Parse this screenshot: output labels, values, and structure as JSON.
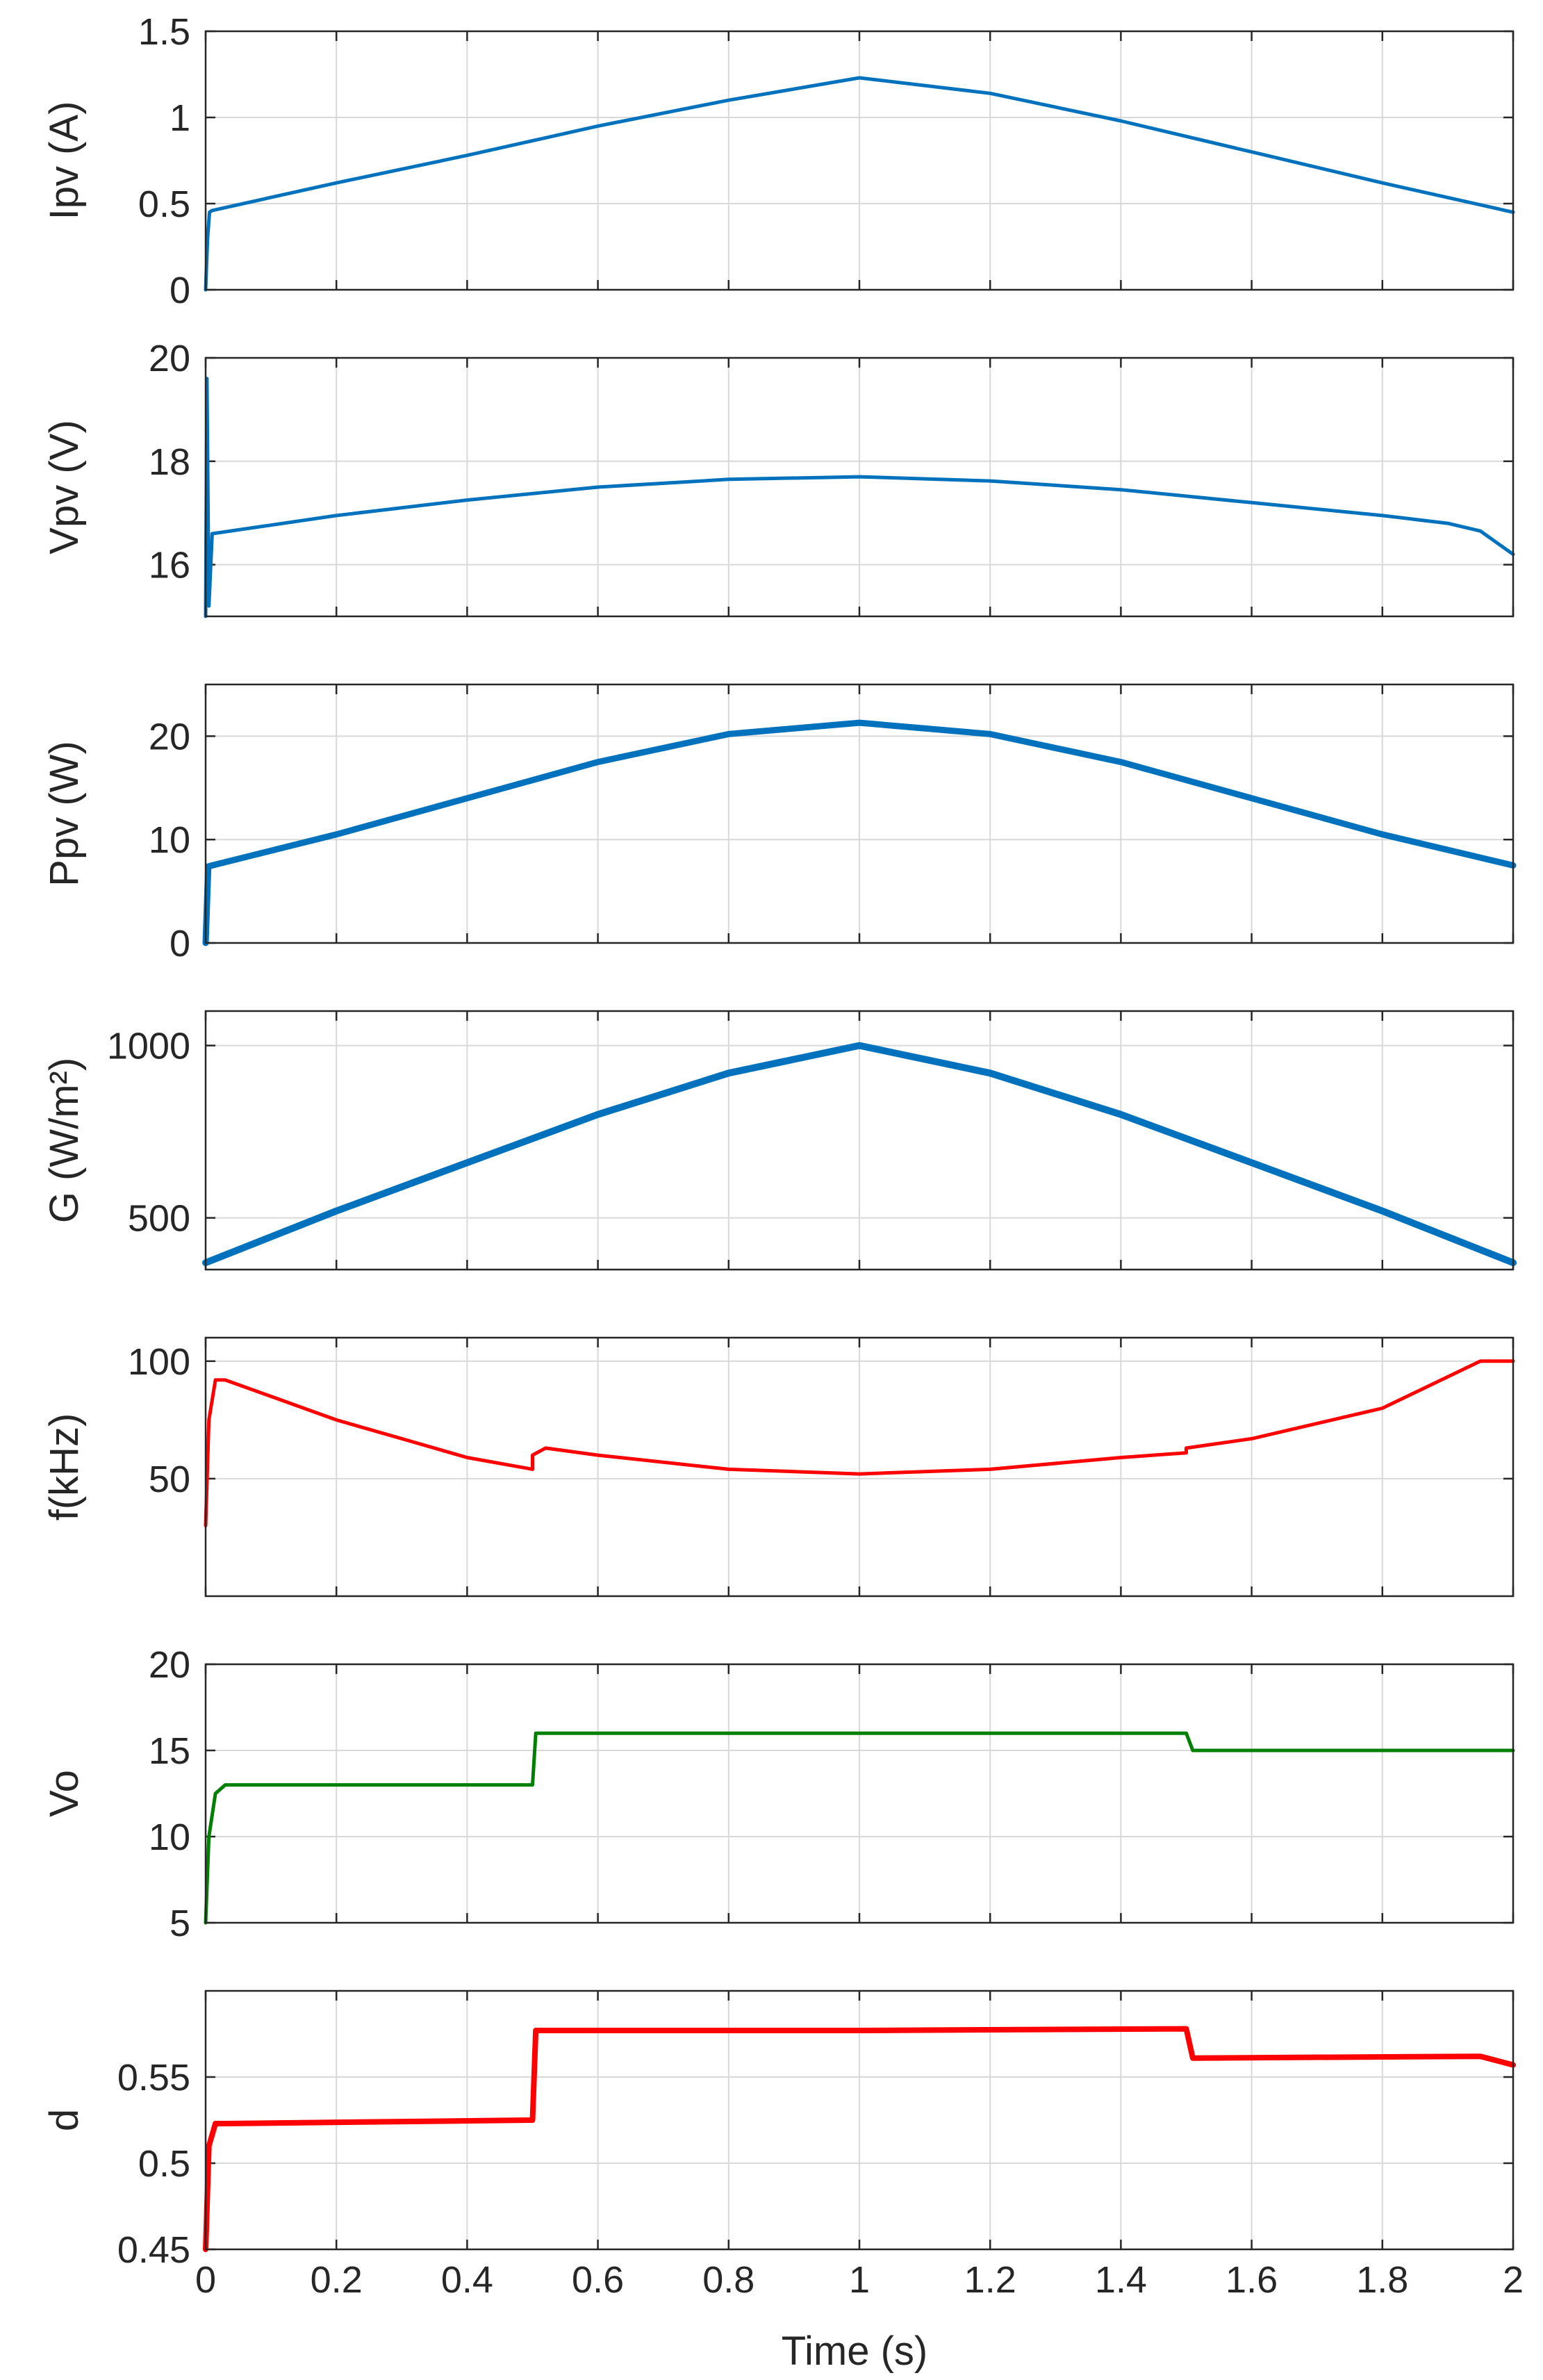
{
  "colors": {
    "blue": "#0072bd",
    "red": "#ff0000",
    "green": "#008000",
    "axis": "#262626",
    "grid": "#d9d9d9"
  },
  "shared_x": {
    "xlabel": "Time (s)",
    "xlim": [
      0,
      2
    ],
    "xticks": [
      0,
      0.2,
      0.4,
      0.6,
      0.8,
      1,
      1.2,
      1.4,
      1.6,
      1.8,
      2
    ],
    "xticklabels": [
      "0",
      "0.2",
      "0.4",
      "0.6",
      "0.8",
      "1",
      "1.2",
      "1.4",
      "1.6",
      "1.8",
      "2"
    ]
  },
  "chart_data": [
    {
      "type": "line",
      "ylabel": "Ipv (A)",
      "ylim": [
        0,
        1.5
      ],
      "yticks": [
        0,
        0.5,
        1,
        1.5
      ],
      "yticklabels": [
        "0",
        "0.5",
        "1",
        "1.5"
      ],
      "grid": true,
      "color": "blue",
      "x": [
        0,
        0.003,
        0.006,
        0.01,
        0.2,
        0.4,
        0.6,
        0.8,
        1.0,
        1.2,
        1.4,
        1.6,
        1.8,
        2.0
      ],
      "y": [
        0,
        0.3,
        0.45,
        0.46,
        0.62,
        0.78,
        0.95,
        1.1,
        1.23,
        1.14,
        0.98,
        0.8,
        0.62,
        0.45
      ]
    },
    {
      "type": "line",
      "ylabel": "Vpv (V)",
      "ylim": [
        15,
        20
      ],
      "yticks": [
        16,
        18,
        20
      ],
      "yticklabels": [
        "16",
        "18",
        "20"
      ],
      "grid": true,
      "color": "blue",
      "x": [
        0,
        0.002,
        0.005,
        0.01,
        0.2,
        0.4,
        0.6,
        0.8,
        1.0,
        1.2,
        1.4,
        1.6,
        1.8,
        1.9,
        1.95,
        2.0
      ],
      "y": [
        15,
        19.6,
        15.2,
        16.6,
        16.95,
        17.25,
        17.5,
        17.65,
        17.7,
        17.62,
        17.45,
        17.2,
        16.95,
        16.8,
        16.65,
        16.2
      ]
    },
    {
      "type": "line",
      "ylabel": "Ppv (W)",
      "ylim": [
        0,
        25
      ],
      "yticks": [
        0,
        10,
        20
      ],
      "yticklabels": [
        "0",
        "10",
        "20"
      ],
      "grid": true,
      "color": "blue",
      "x": [
        0,
        0.004,
        0.01,
        0.2,
        0.4,
        0.6,
        0.8,
        1.0,
        1.2,
        1.4,
        1.6,
        1.8,
        2.0
      ],
      "y": [
        0,
        7.4,
        7.5,
        10.5,
        14,
        17.5,
        20.2,
        21.3,
        20.2,
        17.5,
        14,
        10.5,
        7.5
      ]
    },
    {
      "type": "line",
      "ylabel": "G (W/m²)",
      "ylim": [
        350,
        1100
      ],
      "yticks": [
        500,
        1000
      ],
      "yticklabels": [
        "500",
        "1000"
      ],
      "grid": true,
      "color": "blue",
      "x": [
        0,
        0.2,
        0.4,
        0.6,
        0.8,
        1.0,
        1.2,
        1.4,
        1.6,
        1.8,
        2.0
      ],
      "y": [
        370,
        520,
        660,
        800,
        920,
        1000,
        920,
        800,
        660,
        520,
        370
      ]
    },
    {
      "type": "line",
      "ylabel": "f(kHz)",
      "ylim": [
        0,
        110
      ],
      "yticks": [
        50,
        100
      ],
      "yticklabels": [
        "50",
        "100"
      ],
      "grid": true,
      "color": "red",
      "x": [
        0,
        0.005,
        0.015,
        0.03,
        0.1,
        0.2,
        0.3,
        0.4,
        0.5,
        0.5,
        0.52,
        0.6,
        0.8,
        1.0,
        1.2,
        1.4,
        1.5,
        1.5,
        1.6,
        1.8,
        1.95,
        2.0
      ],
      "y": [
        30,
        75,
        92,
        92,
        85,
        75,
        67,
        59,
        54,
        60,
        63,
        60,
        54,
        52,
        54,
        59,
        61,
        63,
        67,
        80,
        100,
        100
      ]
    },
    {
      "type": "line",
      "ylabel": "Vo",
      "ylim": [
        5,
        20
      ],
      "yticks": [
        5,
        10,
        15,
        20
      ],
      "yticklabels": [
        "5",
        "10",
        "15",
        "20"
      ],
      "grid": true,
      "color": "green",
      "x": [
        0,
        0.005,
        0.015,
        0.03,
        0.5,
        0.505,
        0.52,
        1.0,
        1.5,
        1.51,
        2.0
      ],
      "y": [
        5,
        10,
        12.5,
        13,
        13,
        16,
        16,
        16,
        16,
        15,
        15
      ]
    },
    {
      "type": "line",
      "ylabel": "d",
      "ylim": [
        0.45,
        0.6
      ],
      "yticks": [
        0.45,
        0.5,
        0.55
      ],
      "yticklabels": [
        "0.45",
        "0.5",
        "0.55"
      ],
      "grid": true,
      "color": "red",
      "x": [
        0,
        0.005,
        0.015,
        0.03,
        0.5,
        0.505,
        0.52,
        1.0,
        1.5,
        1.51,
        1.95,
        2.0
      ],
      "y": [
        0.45,
        0.51,
        0.523,
        0.523,
        0.525,
        0.577,
        0.577,
        0.577,
        0.578,
        0.561,
        0.562,
        0.557
      ]
    }
  ]
}
